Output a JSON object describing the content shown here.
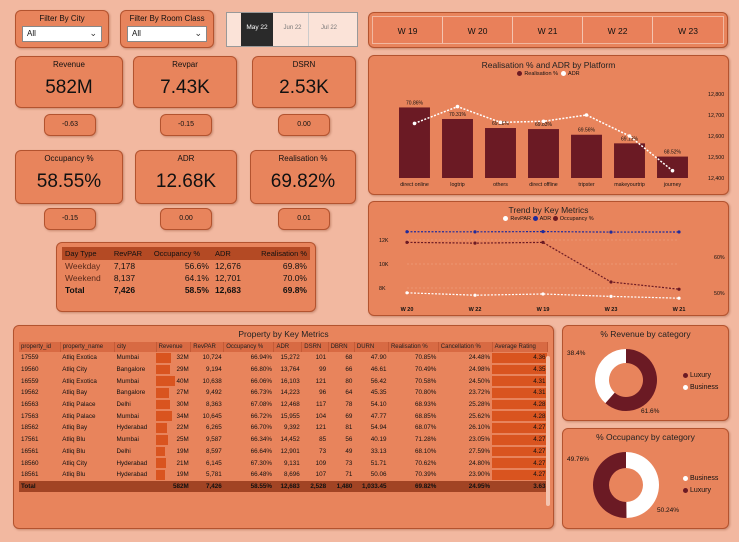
{
  "filters": {
    "city": {
      "label": "Filter By City",
      "value": "All"
    },
    "room_class": {
      "label": "Filter By Room Class",
      "value": "All"
    }
  },
  "months": [
    {
      "label": "May 22",
      "selected": true
    },
    {
      "label": "Jun 22",
      "selected": false
    },
    {
      "label": "Jul 22",
      "selected": false
    }
  ],
  "weeks": [
    "W 19",
    "W 20",
    "W 21",
    "W 22",
    "W 23"
  ],
  "kpis": [
    {
      "name": "Revenue",
      "value": "582M",
      "delta": "-0.63"
    },
    {
      "name": "Revpar",
      "value": "7.43K",
      "delta": "-0.15"
    },
    {
      "name": "DSRN",
      "value": "2.53K",
      "delta": "0.00"
    },
    {
      "name": "Occupancy %",
      "value": "58.55%",
      "delta": "-0.15"
    },
    {
      "name": "ADR",
      "value": "12.68K",
      "delta": "0.00"
    },
    {
      "name": "Realisation %",
      "value": "69.82%",
      "delta": "0.01"
    }
  ],
  "daytype": {
    "headers": [
      "Day Type",
      "RevPAR",
      "Occupancy %",
      "ADR",
      "Realisation %"
    ],
    "rows": [
      [
        "Weekday",
        "7,178",
        "56.6%",
        "12,676",
        "69.8%"
      ],
      [
        "Weekend",
        "8,137",
        "64.1%",
        "12,701",
        "70.0%"
      ]
    ],
    "total": [
      "Total",
      "7,426",
      "58.5%",
      "12,683",
      "69.8%"
    ]
  },
  "platform_chart": {
    "title": "Realisation % and ADR by Platform",
    "legend": [
      "Realisation %",
      "ADR"
    ],
    "right_ticks": [
      "12,800",
      "12,700",
      "12,600",
      "12,500",
      "12,400"
    ]
  },
  "trend_chart": {
    "title": "Trend by Key Metrics",
    "legend": [
      "RevPAR",
      "ADR",
      "Occupancy %"
    ],
    "left_ticks": [
      "12K",
      "10K",
      "8K"
    ],
    "right_ticks": [
      "60%",
      "50%"
    ]
  },
  "property_table": {
    "title": "Property by Key Metrics",
    "headers": [
      "property_id",
      "property_name",
      "city",
      "Revenue",
      "RevPAR",
      "Occupancy %",
      "ADR",
      "DSRN",
      "DBRN",
      "DURN",
      "Realisation %",
      "Cancellation %",
      "Average Rating"
    ],
    "rows": [
      [
        "17559",
        "Atliq Exotica",
        "Mumbai",
        "32M",
        "10,724",
        "66.94%",
        "15,272",
        "101",
        "68",
        "47.90",
        "70.85%",
        "24.48%",
        "4.36"
      ],
      [
        "19560",
        "Atliq City",
        "Bangalore",
        "29M",
        "9,194",
        "66.80%",
        "13,764",
        "99",
        "66",
        "46.61",
        "70.49%",
        "24.98%",
        "4.35"
      ],
      [
        "16559",
        "Atliq Exotica",
        "Mumbai",
        "40M",
        "10,638",
        "66.06%",
        "16,103",
        "121",
        "80",
        "56.42",
        "70.58%",
        "24.50%",
        "4.31"
      ],
      [
        "19562",
        "Atliq Bay",
        "Bangalore",
        "27M",
        "9,492",
        "66.73%",
        "14,223",
        "96",
        "64",
        "45.35",
        "70.80%",
        "23.72%",
        "4.31"
      ],
      [
        "16563",
        "Atliq Palace",
        "Delhi",
        "30M",
        "8,363",
        "67.08%",
        "12,468",
        "117",
        "78",
        "54.10",
        "68.93%",
        "25.28%",
        "4.28"
      ],
      [
        "17563",
        "Atliq Palace",
        "Mumbai",
        "34M",
        "10,645",
        "66.72%",
        "15,955",
        "104",
        "69",
        "47.77",
        "68.85%",
        "25.62%",
        "4.28"
      ],
      [
        "18562",
        "Atliq Bay",
        "Hyderabad",
        "22M",
        "6,265",
        "66.70%",
        "9,392",
        "121",
        "81",
        "54.94",
        "68.07%",
        "26.10%",
        "4.27"
      ],
      [
        "17561",
        "Atliq Blu",
        "Mumbai",
        "25M",
        "9,587",
        "66.34%",
        "14,452",
        "85",
        "56",
        "40.19",
        "71.28%",
        "23.05%",
        "4.27"
      ],
      [
        "16561",
        "Atliq Blu",
        "Delhi",
        "19M",
        "8,597",
        "66.64%",
        "12,901",
        "73",
        "49",
        "33.13",
        "68.10%",
        "27.59%",
        "4.27"
      ],
      [
        "18560",
        "Atliq City",
        "Hyderabad",
        "21M",
        "6,145",
        "67.30%",
        "9,131",
        "109",
        "73",
        "51.71",
        "70.62%",
        "24.80%",
        "4.27"
      ],
      [
        "18561",
        "Atliq Blu",
        "Hyderabad",
        "19M",
        "5,781",
        "66.48%",
        "8,696",
        "107",
        "71",
        "50.06",
        "70.39%",
        "23.90%",
        "4.27"
      ]
    ],
    "total": [
      "Total",
      "",
      "",
      "582M",
      "7,426",
      "58.55%",
      "12,683",
      "2,528",
      "1,480",
      "1,033.45",
      "69.82%",
      "24.95%",
      "3.63"
    ]
  },
  "revenue_donut": {
    "title": "% Revenue by category",
    "legend": [
      "Luxury",
      "Business"
    ],
    "labels": [
      "38.4%",
      "61.6%"
    ]
  },
  "occupancy_donut": {
    "title": "% Occupancy by category",
    "legend": [
      "Business",
      "Luxury"
    ],
    "labels": [
      "49.76%",
      "50.24%"
    ]
  },
  "colors": {
    "background": "#f2b8a0",
    "panel": "#e8845c",
    "dark_bar": "#6b1a24",
    "accent": "#d9541f",
    "line_blue": "#1f2a9c"
  },
  "chart_data": [
    {
      "type": "bar",
      "title": "Realisation % and ADR by Platform",
      "categories": [
        "direct online",
        "logtrip",
        "others",
        "direct offline",
        "tripster",
        "makeyourtrip",
        "journey"
      ],
      "series": [
        {
          "name": "Realisation %",
          "values": [
            70.86,
            70.31,
            69.88,
            69.83,
            69.56,
            69.15,
            68.52
          ],
          "labels": [
            "70.86%",
            "70.31%",
            "69.88%",
            "69.83%",
            "69.56%",
            "69.15%",
            "68.52%"
          ]
        },
        {
          "name": "ADR",
          "values": [
            12660,
            12740,
            12665,
            12670,
            12700,
            12600,
            12435
          ]
        }
      ],
      "y2_ticks": [
        12400,
        12500,
        12600,
        12700,
        12800
      ]
    },
    {
      "type": "line",
      "title": "Trend by Key Metrics",
      "categories": [
        "W 20",
        "W 22",
        "W 19",
        "W 23",
        "W 21"
      ],
      "series": [
        {
          "name": "RevPAR",
          "values": [
            7600,
            7400,
            7500,
            7300,
            7150
          ]
        },
        {
          "name": "ADR",
          "values": [
            12690,
            12680,
            12700,
            12660,
            12670
          ]
        },
        {
          "name": "Occupancy %",
          "values": [
            64,
            63.8,
            64,
            53,
            51
          ]
        }
      ],
      "left_ticks": [
        8000,
        10000,
        12000
      ],
      "right_ticks": [
        50,
        60
      ]
    },
    {
      "type": "pie",
      "title": "% Revenue by category",
      "categories": [
        "Luxury",
        "Business"
      ],
      "values": [
        61.6,
        38.4
      ]
    },
    {
      "type": "pie",
      "title": "% Occupancy by category",
      "categories": [
        "Business",
        "Luxury"
      ],
      "values": [
        49.76,
        50.24
      ]
    }
  ]
}
